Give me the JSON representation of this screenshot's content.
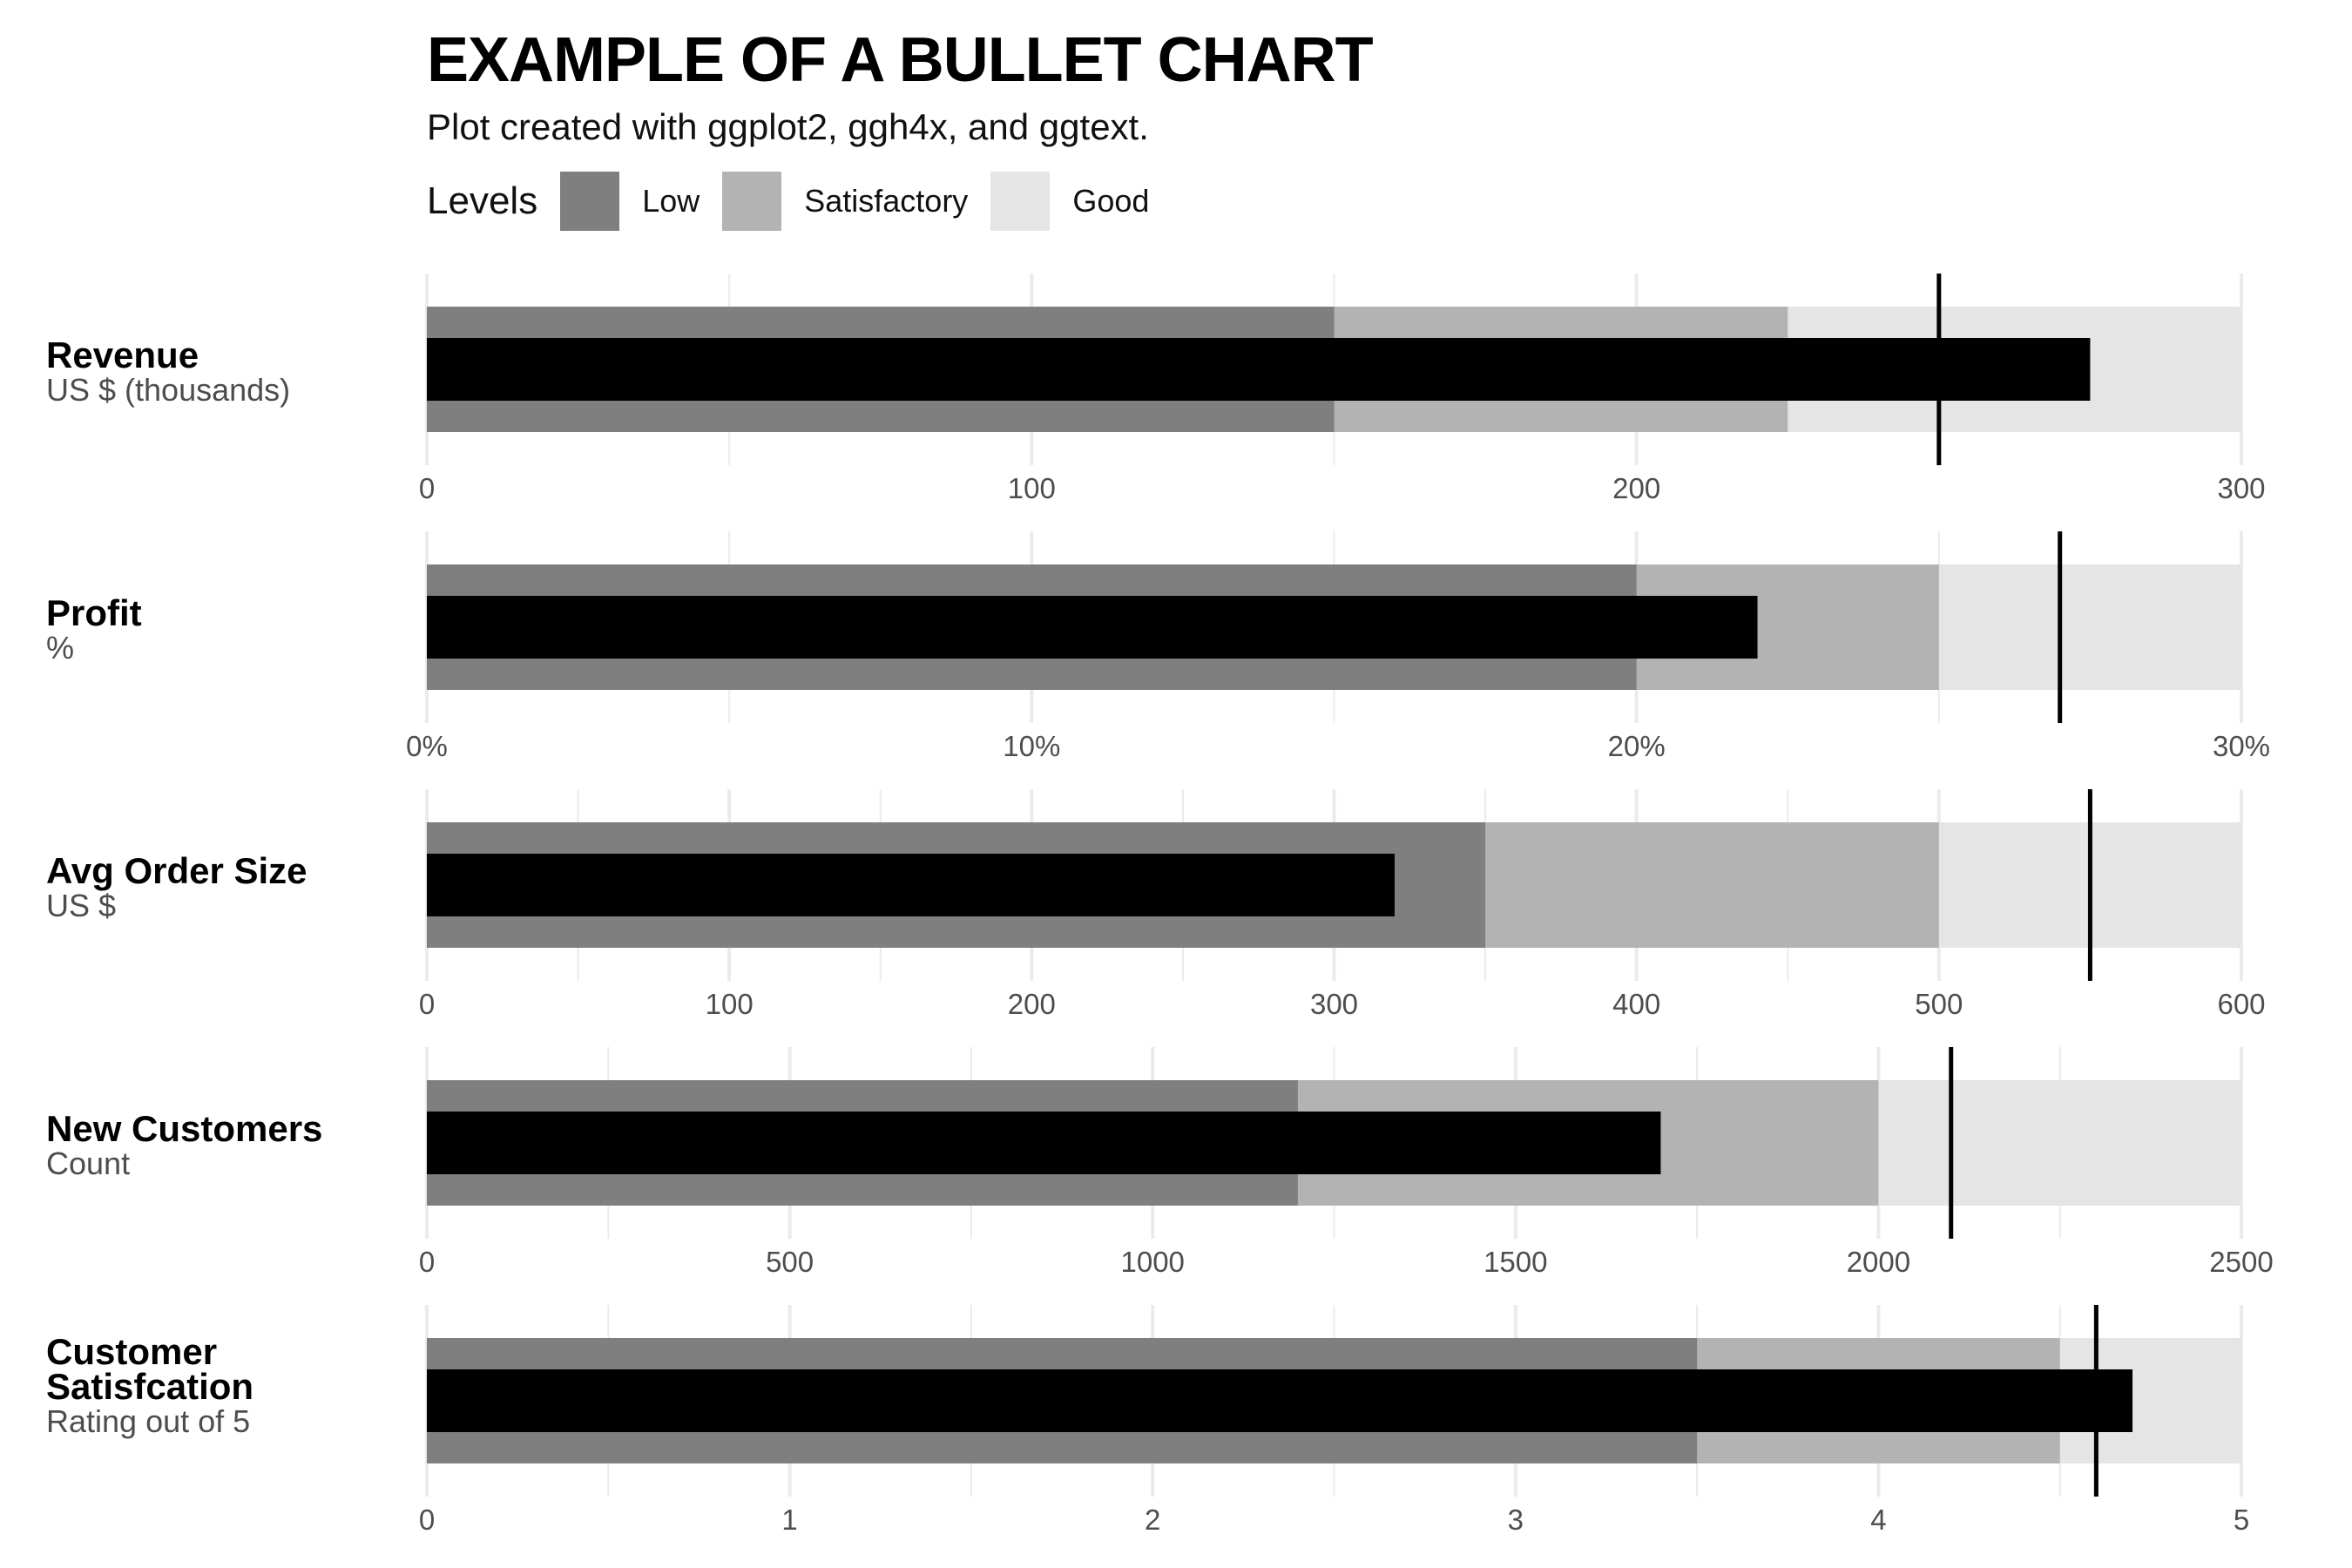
{
  "title": "EXAMPLE OF A BULLET CHART",
  "subtitle": "Plot created with ggplot2, ggh4x, and ggtext.",
  "legend": {
    "title": "Levels",
    "items": [
      {
        "label": "Low",
        "color": "#7f7f7f"
      },
      {
        "label": "Satisfactory",
        "color": "#b3b3b3"
      },
      {
        "label": "Good",
        "color": "#e5e5e5"
      }
    ]
  },
  "colors": {
    "low": "#7f7f7f",
    "satisfactory": "#b3b3b3",
    "good": "#e5e5e5",
    "value_bar": "#000000",
    "target": "#000000",
    "grid": "#ebebeb"
  },
  "chart_data": {
    "type": "bar",
    "title": "EXAMPLE OF A BULLET CHART",
    "subtitle": "Plot created with ggplot2, ggh4x, and ggtext.",
    "legend_position": "top-left",
    "grid": true,
    "rows": [
      {
        "title": "Revenue",
        "subtitle": "US $ (thousands)",
        "low": 150,
        "satisfactory": 225,
        "good": 300,
        "value": 275,
        "target": 250,
        "xlim": [
          0,
          300
        ],
        "ticks": [
          0,
          100,
          200,
          300
        ],
        "tick_labels": [
          "0",
          "100",
          "200",
          "300"
        ],
        "minor_ticks": [
          50,
          150,
          250
        ]
      },
      {
        "title": "Profit",
        "subtitle": "%",
        "low": 20,
        "satisfactory": 25,
        "good": 30,
        "value": 22,
        "target": 27,
        "xlim": [
          0,
          30
        ],
        "ticks": [
          0,
          10,
          20,
          30
        ],
        "tick_labels": [
          "0%",
          "10%",
          "20%",
          "30%"
        ],
        "minor_ticks": [
          5,
          15,
          25
        ]
      },
      {
        "title": "Avg Order Size",
        "subtitle": "US $",
        "low": 350,
        "satisfactory": 500,
        "good": 600,
        "value": 320,
        "target": 550,
        "xlim": [
          0,
          600
        ],
        "ticks": [
          0,
          100,
          200,
          300,
          400,
          500,
          600
        ],
        "tick_labels": [
          "0",
          "100",
          "200",
          "300",
          "400",
          "500",
          "600"
        ],
        "minor_ticks": [
          50,
          150,
          250,
          350,
          450,
          550
        ]
      },
      {
        "title": "New Customers",
        "subtitle": "Count",
        "low": 1200,
        "satisfactory": 2000,
        "good": 2500,
        "value": 1700,
        "target": 2100,
        "xlim": [
          0,
          2500
        ],
        "ticks": [
          0,
          500,
          1000,
          1500,
          2000,
          2500
        ],
        "tick_labels": [
          "0",
          "500",
          "1000",
          "1500",
          "2000",
          "2500"
        ],
        "minor_ticks": [
          250,
          750,
          1250,
          1750,
          2250
        ]
      },
      {
        "title": "Customer Satisfcation",
        "title_lines": [
          "Customer",
          "Satisfcation"
        ],
        "subtitle": "Rating out of 5",
        "low": 3.5,
        "satisfactory": 4.5,
        "good": 5,
        "value": 4.7,
        "target": 4.6,
        "xlim": [
          0,
          5
        ],
        "ticks": [
          0,
          1,
          2,
          3,
          4,
          5
        ],
        "tick_labels": [
          "0",
          "1",
          "2",
          "3",
          "4",
          "5"
        ],
        "minor_ticks": [
          0.5,
          1.5,
          2.5,
          3.5,
          4.5
        ]
      }
    ]
  }
}
